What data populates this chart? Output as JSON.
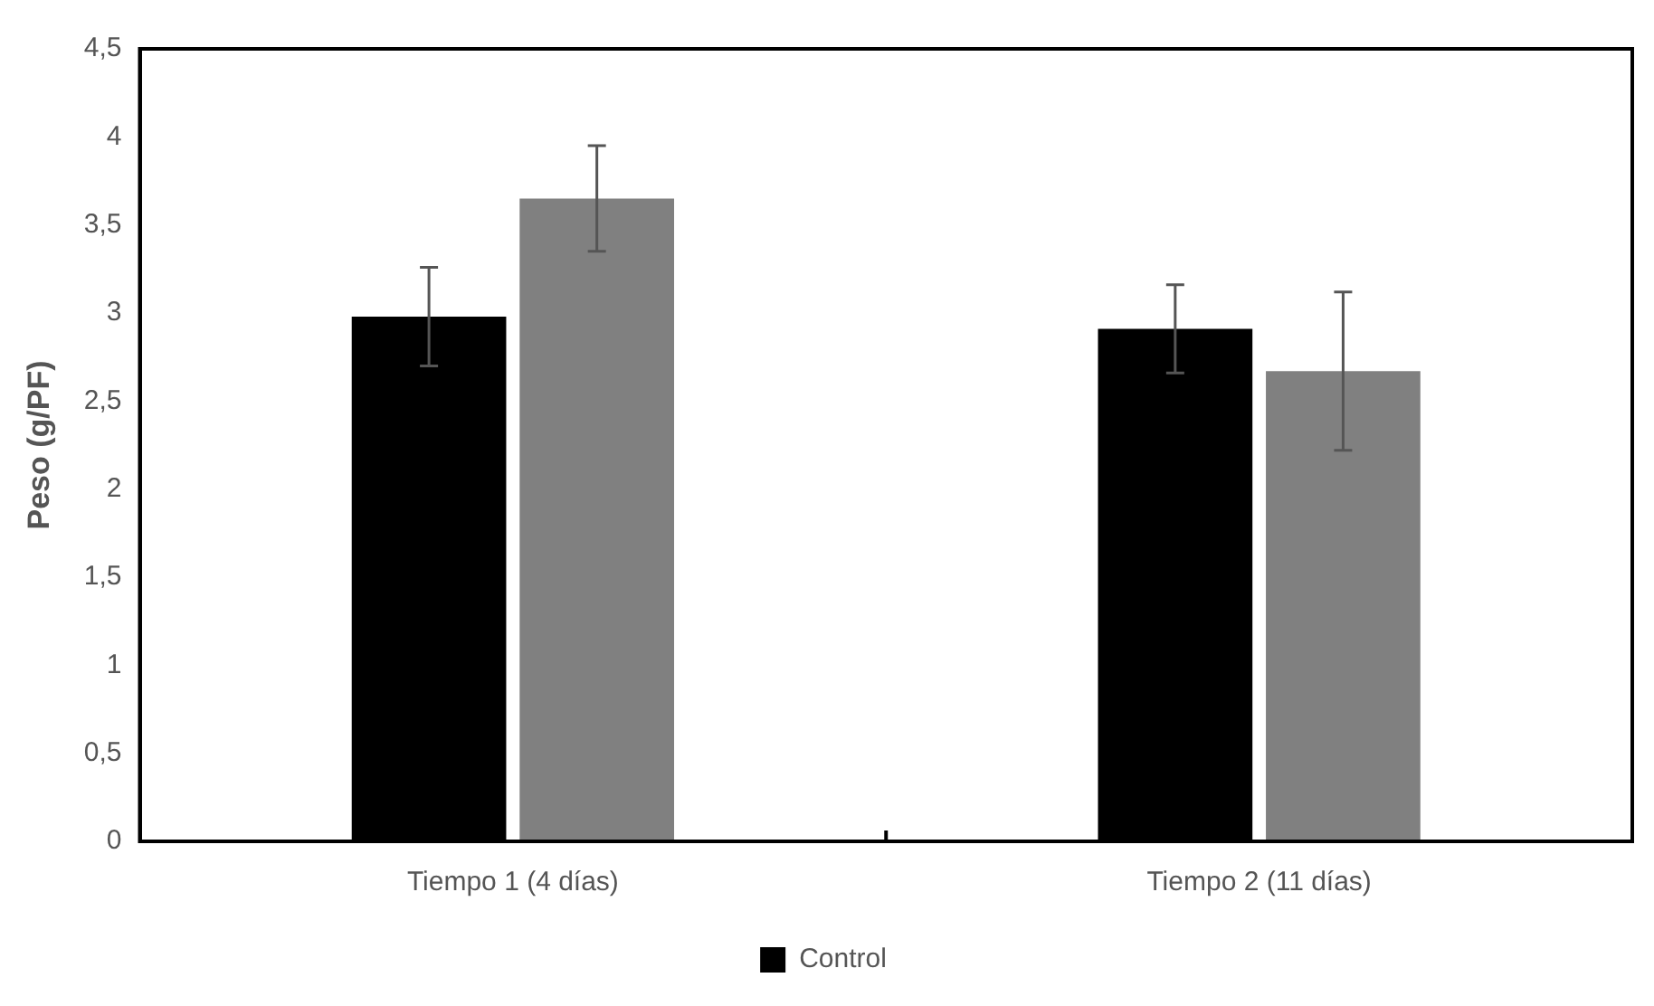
{
  "chart_data": {
    "type": "bar",
    "ylabel": "Peso (g/PF)",
    "categories": [
      "Tiempo 1 (4 días)",
      "Tiempo 2 (11 días)"
    ],
    "series": [
      {
        "name": "Control",
        "color": "#000000",
        "values": [
          2.98,
          2.91
        ],
        "errors": [
          0.28,
          0.25
        ]
      },
      {
        "color": "#808080",
        "values": [
          3.65,
          2.67
        ],
        "errors": [
          0.3,
          0.45
        ]
      }
    ],
    "ylim": [
      0,
      4.5
    ],
    "yticks": [
      {
        "value": 0,
        "label": "0"
      },
      {
        "value": 0.5,
        "label": "0,5"
      },
      {
        "value": 1,
        "label": "1"
      },
      {
        "value": 1.5,
        "label": "1,5"
      },
      {
        "value": 2,
        "label": "2"
      },
      {
        "value": 2.5,
        "label": "2,5"
      },
      {
        "value": 3,
        "label": "3"
      },
      {
        "value": 3.5,
        "label": "3,5"
      },
      {
        "value": 4,
        "label": "4"
      },
      {
        "value": 4.5,
        "label": "4,5"
      }
    ],
    "grid": false,
    "legend": "bottom"
  }
}
